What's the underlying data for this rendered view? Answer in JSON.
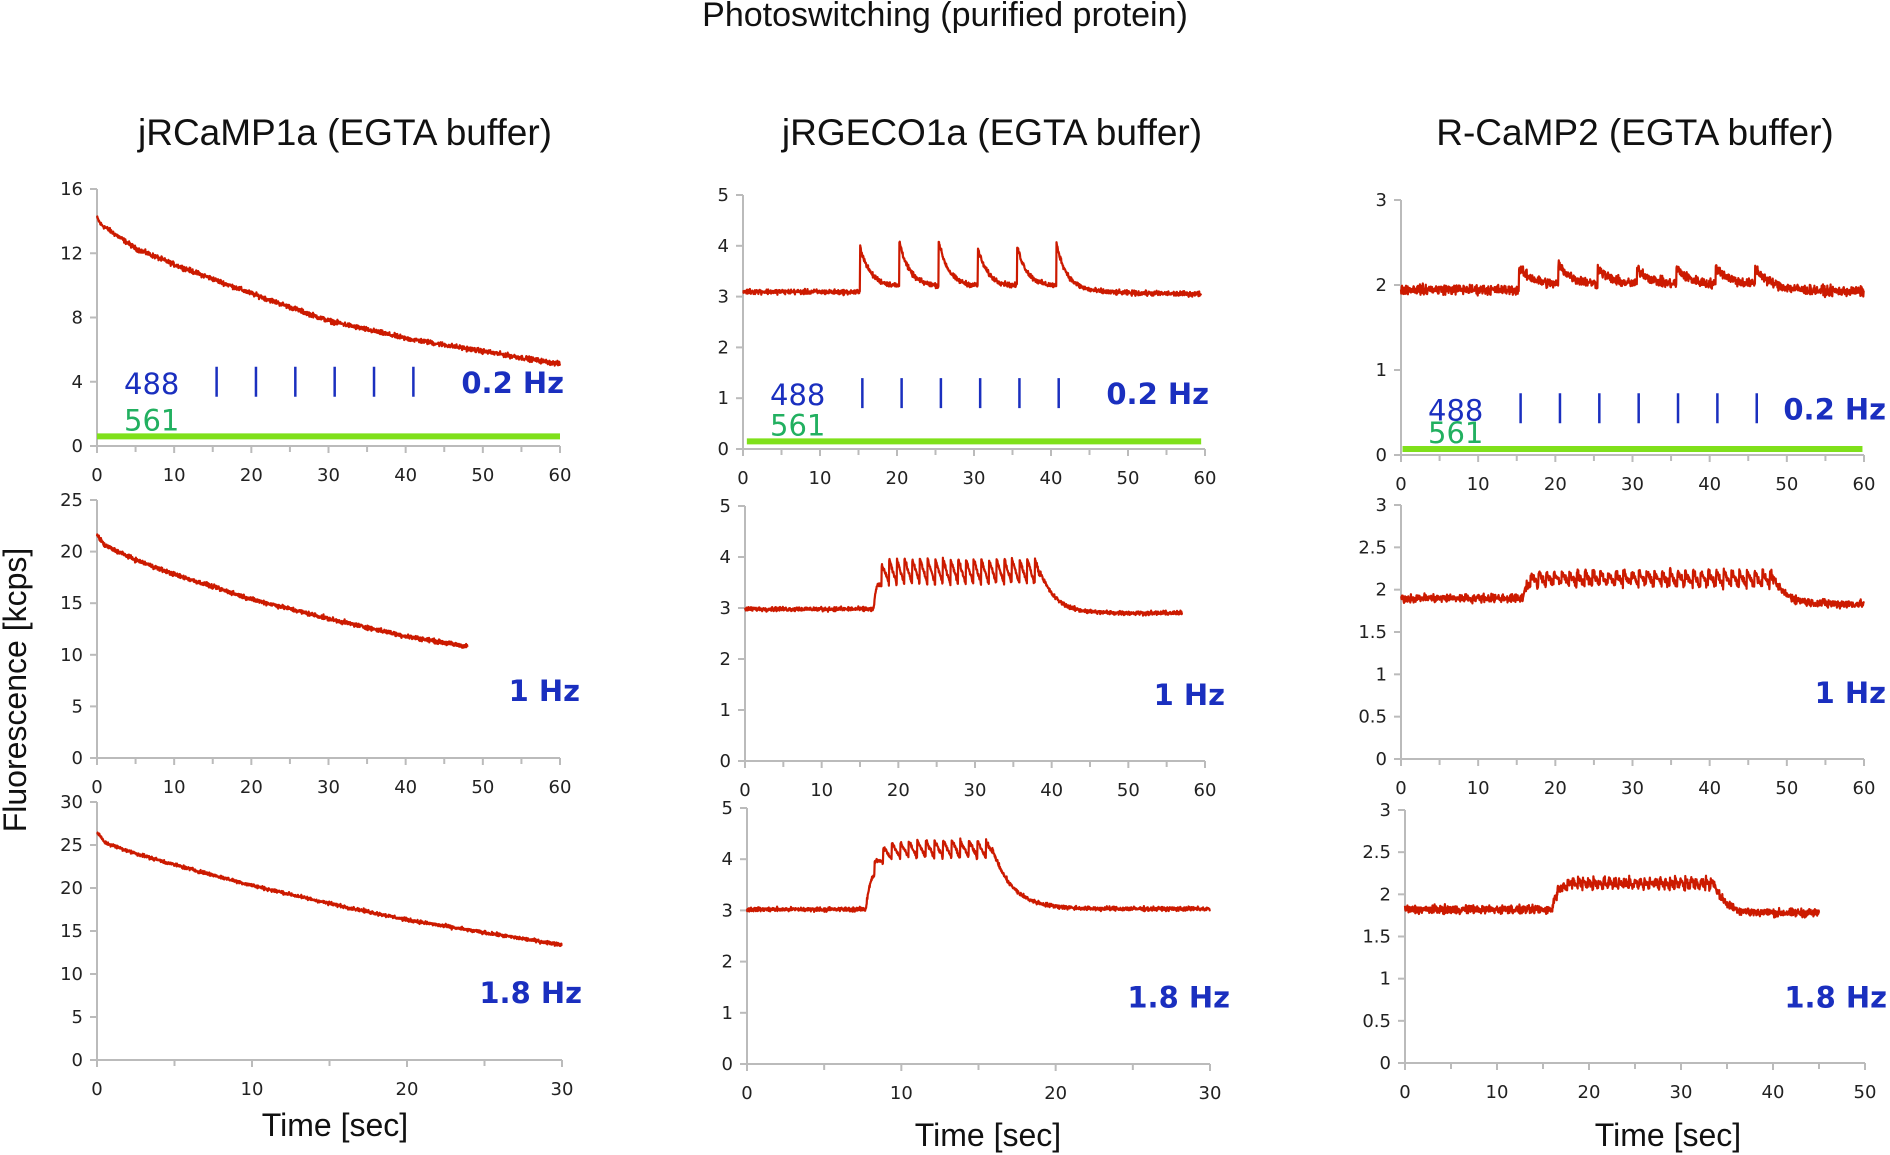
{
  "chart_data": {
    "type": "line",
    "title": "Photoswitching (purified protein)",
    "ylabel": "Fluorescence [kcps]",
    "xlabel": "Time [sec]",
    "colors": {
      "trace": "#cc1a00",
      "laser_488": "#1a2fbf",
      "laser_561_line": "#7fe01a",
      "laser_561_text": "#22b060",
      "frequency_label": "#1a2fbf",
      "axis": "#bbbbbb"
    },
    "columns": [
      {
        "title": "jRCaMP1a (EGTA buffer)"
      },
      {
        "title": "jRGECO1a (EGTA buffer)"
      },
      {
        "title": "R-CaMP2 (EGTA buffer)"
      }
    ],
    "panels": [
      {
        "id": "jrcamp1a-0.2hz",
        "col": 0,
        "row": 0,
        "frequency": "0.2 Hz",
        "xlim": [
          0,
          60
        ],
        "xticks": [
          0,
          10,
          20,
          30,
          40,
          50,
          60
        ],
        "ylim": [
          0,
          16
        ],
        "yticks": [
          0,
          4,
          8,
          12,
          16
        ],
        "laser_488": {
          "label": "488",
          "pulse_times": [
            15.5,
            20.6,
            25.7,
            30.8,
            35.9,
            41.0
          ],
          "level": 4
        },
        "laser_561": {
          "label": "561",
          "on": [
            0,
            60
          ],
          "level": 0.6
        },
        "trace": {
          "kind": "decay",
          "t_end": 60,
          "points": [
            [
              0,
              14.2
            ],
            [
              0.5,
              13.8
            ],
            [
              5,
              12.3
            ],
            [
              10,
              11.3
            ],
            [
              20,
              9.5
            ],
            [
              30,
              7.8
            ],
            [
              40,
              6.7
            ],
            [
              50,
              5.9
            ],
            [
              60,
              5.1
            ]
          ],
          "noise": 0.18
        }
      },
      {
        "id": "jrgeco1a-0.2hz",
        "col": 1,
        "row": 0,
        "frequency": "0.2 Hz",
        "xlim": [
          0,
          60
        ],
        "xticks": [
          0,
          10,
          20,
          30,
          40,
          50,
          60
        ],
        "ylim": [
          0,
          5
        ],
        "yticks": [
          0,
          1,
          2,
          3,
          4,
          5
        ],
        "laser_488": {
          "label": "488",
          "pulse_times": [
            15.5,
            20.6,
            25.7,
            30.8,
            35.9,
            41.0
          ],
          "level": 1.1
        },
        "laser_561": {
          "label": "561",
          "on": [
            0.5,
            59.5
          ],
          "level": 0.15
        },
        "trace": {
          "kind": "spikes",
          "t_end": 59.5,
          "baseline": 3.1,
          "end_baseline": 3.05,
          "spike_times": [
            15.2,
            20.3,
            25.4,
            30.5,
            35.6,
            40.7
          ],
          "spike_peaks": [
            4.0,
            4.1,
            4.1,
            3.95,
            4.0,
            4.05
          ],
          "decay_tau": 1.3,
          "plateau": 3.2,
          "noise": 0.06
        }
      },
      {
        "id": "rcamp2-0.2hz",
        "col": 2,
        "row": 0,
        "frequency": "0.2 Hz",
        "xlim": [
          0,
          60
        ],
        "xticks": [
          0,
          10,
          20,
          30,
          40,
          50,
          60
        ],
        "ylim": [
          0,
          3
        ],
        "yticks": [
          0,
          1,
          2,
          3
        ],
        "laser_488": {
          "label": "488",
          "pulse_times": [
            15.5,
            20.6,
            25.7,
            30.8,
            35.9,
            41.0,
            46.1
          ],
          "level": 0.55
        },
        "laser_561": {
          "label": "561",
          "on": [
            0.2,
            59.8
          ],
          "level": 0.07
        },
        "trace": {
          "kind": "spikes",
          "t_end": 60,
          "baseline": 1.95,
          "end_baseline": 1.92,
          "spike_times": [
            15.3,
            20.4,
            25.5,
            30.6,
            35.7,
            40.8,
            45.9
          ],
          "spike_peaks": [
            2.2,
            2.25,
            2.2,
            2.2,
            2.2,
            2.22,
            2.2
          ],
          "decay_tau": 1.8,
          "plateau": 2.0,
          "noise": 0.07
        }
      },
      {
        "id": "jrcamp1a-1hz",
        "col": 0,
        "row": 1,
        "frequency": "1 Hz",
        "xlim": [
          0,
          60
        ],
        "xticks": [
          0,
          10,
          20,
          30,
          40,
          50,
          60
        ],
        "ylim": [
          0,
          25
        ],
        "yticks": [
          0,
          5,
          10,
          15,
          20,
          25
        ],
        "trace": {
          "kind": "decay",
          "t_end": 48,
          "points": [
            [
              0,
              21.6
            ],
            [
              1,
              20.6
            ],
            [
              5,
              19.2
            ],
            [
              10,
              17.8
            ],
            [
              20,
              15.4
            ],
            [
              30,
              13.5
            ],
            [
              40,
              11.8
            ],
            [
              48,
              10.8
            ]
          ],
          "noise": 0.25
        }
      },
      {
        "id": "jrgeco1a-1hz",
        "col": 1,
        "row": 1,
        "frequency": "1 Hz",
        "xlim": [
          0,
          60
        ],
        "xticks": [
          0,
          10,
          20,
          30,
          40,
          50,
          60
        ],
        "ylim": [
          0,
          5
        ],
        "yticks": [
          0,
          1,
          2,
          3,
          4,
          5
        ],
        "trace": {
          "kind": "train",
          "t_end": 57,
          "baseline": 2.98,
          "end_baseline": 2.9,
          "on": 16.8,
          "off": 38.5,
          "mean_on": 3.72,
          "osc_amplitude": 0.25,
          "osc_hz": 1,
          "decay_tau": 2.0,
          "noise": 0.05
        }
      },
      {
        "id": "rcamp2-1hz",
        "col": 2,
        "row": 1,
        "frequency": "1 Hz",
        "xlim": [
          0,
          60
        ],
        "xticks": [
          0,
          10,
          20,
          30,
          40,
          50,
          60
        ],
        "ylim": [
          0,
          3
        ],
        "yticks": [
          0,
          0.5,
          1,
          1.5,
          2,
          2.5,
          3
        ],
        "trace": {
          "kind": "train",
          "t_end": 60,
          "baseline": 1.9,
          "end_baseline": 1.83,
          "on": 15.8,
          "off": 48.2,
          "mean_on": 2.13,
          "osc_amplitude": 0.08,
          "osc_hz": 1,
          "decay_tau": 1.8,
          "noise": 0.06
        }
      },
      {
        "id": "jrcamp1a-1.8hz",
        "col": 0,
        "row": 2,
        "frequency": "1.8 Hz",
        "xlim": [
          0,
          30
        ],
        "xticks": [
          0,
          10,
          20,
          30
        ],
        "ylim": [
          0,
          30
        ],
        "yticks": [
          0,
          5,
          10,
          15,
          20,
          25,
          30
        ],
        "trace": {
          "kind": "decay",
          "t_end": 30,
          "points": [
            [
              0,
              26.5
            ],
            [
              0.5,
              25.3
            ],
            [
              2,
              24.3
            ],
            [
              5,
              22.7
            ],
            [
              10,
              20.3
            ],
            [
              15,
              18.2
            ],
            [
              20,
              16.3
            ],
            [
              25,
              14.8
            ],
            [
              30,
              13.4
            ]
          ],
          "noise": 0.25
        }
      },
      {
        "id": "jrgeco1a-1.8hz",
        "col": 1,
        "row": 2,
        "frequency": "1.8 Hz",
        "xlim": [
          0,
          30
        ],
        "xticks": [
          0,
          10,
          20,
          30
        ],
        "ylim": [
          0,
          5
        ],
        "yticks": [
          0,
          1,
          2,
          3,
          4,
          5
        ],
        "trace": {
          "kind": "train",
          "t_end": 30,
          "baseline": 3.02,
          "end_baseline": 3.03,
          "on": 7.7,
          "off": 15.9,
          "mean_on": 4.2,
          "osc_amplitude": 0.17,
          "osc_hz": 1.8,
          "decay_tau": 1.3,
          "noise": 0.05
        }
      },
      {
        "id": "rcamp2-1.8hz",
        "col": 2,
        "row": 2,
        "frequency": "1.8 Hz",
        "xlim": [
          0,
          50
        ],
        "xticks": [
          0,
          10,
          20,
          30,
          40,
          50
        ],
        "ylim": [
          0,
          3
        ],
        "yticks": [
          0,
          0.5,
          1,
          1.5,
          2,
          2.5,
          3
        ],
        "trace": {
          "kind": "train",
          "t_end": 45,
          "baseline": 1.82,
          "end_baseline": 1.78,
          "on": 16.0,
          "off": 33.6,
          "mean_on": 2.13,
          "osc_amplitude": 0.05,
          "osc_hz": 1.8,
          "decay_tau": 1.2,
          "noise": 0.06
        }
      }
    ]
  }
}
